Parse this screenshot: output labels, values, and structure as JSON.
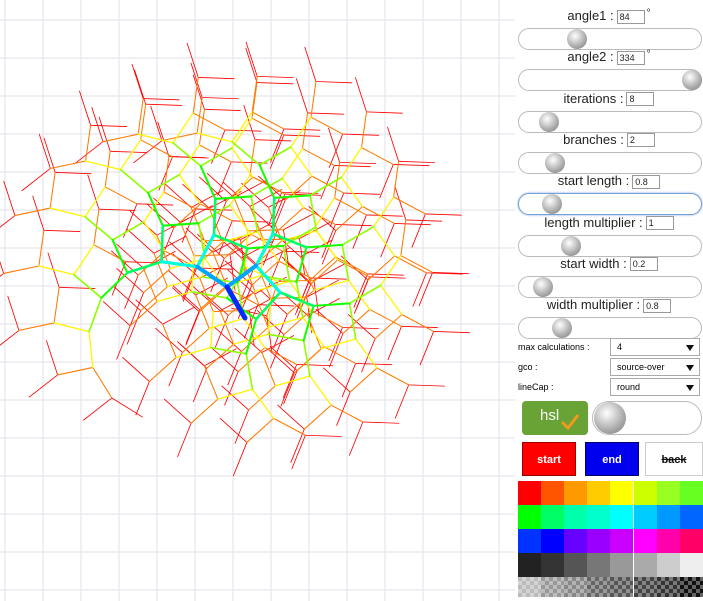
{
  "controls": [
    {
      "label": "angle1 :",
      "value": "84",
      "unit": "°"
    },
    {
      "label": "angle2 :",
      "value": "334",
      "unit": "°"
    },
    {
      "label": "iterations :",
      "value": "8"
    },
    {
      "label": "branches :",
      "value": "2"
    },
    {
      "label": "start length :",
      "value": "0.8"
    },
    {
      "label": "length multiplier :",
      "value": "1"
    },
    {
      "label": "start width :",
      "value": "0.2"
    },
    {
      "label": "width multiplier :",
      "value": "0.8"
    }
  ],
  "selects": [
    {
      "label": "max calculations :",
      "value": "4"
    },
    {
      "label": "gco :",
      "value": "source-over"
    },
    {
      "label": "lineCap :",
      "value": "round"
    }
  ],
  "toggle": {
    "label": "hsl"
  },
  "buttons": [
    "start",
    "end",
    "back"
  ]
}
